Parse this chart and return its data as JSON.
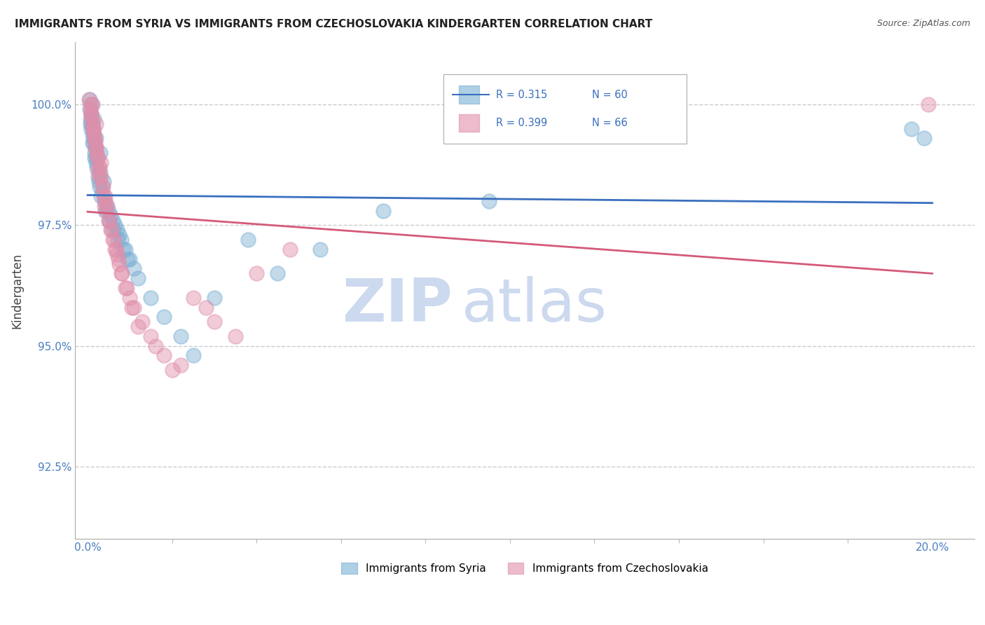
{
  "title": "IMMIGRANTS FROM SYRIA VS IMMIGRANTS FROM CZECHOSLOVAKIA KINDERGARTEN CORRELATION CHART",
  "source": "Source: ZipAtlas.com",
  "ylabel": "Kindergarten",
  "ylim": [
    91.0,
    101.3
  ],
  "xlim": [
    -0.3,
    21.0
  ],
  "yticks": [
    92.5,
    95.0,
    97.5,
    100.0
  ],
  "xtick_left": "0.0%",
  "xtick_right": "20.0%",
  "syria_color": "#7bafd4",
  "czechoslovakia_color": "#e08faa",
  "syria_line_color": "#3a6fbe",
  "czechoslovakia_line_color": "#d45a7a",
  "syria_label": "Immigrants from Syria",
  "czechoslovakia_label": "Immigrants from Czechoslovakia",
  "R_syria": "0.315",
  "N_syria": "60",
  "R_czecho": "0.399",
  "N_czecho": "66",
  "background_color": "#ffffff",
  "grid_color": "#cccccc",
  "watermark_zip": "ZIP",
  "watermark_atlas": "atlas",
  "watermark_color": "#ccd9ee",
  "tick_color": "#4a7fc1",
  "syria_x": [
    0.05,
    0.05,
    0.07,
    0.08,
    0.09,
    0.1,
    0.1,
    0.12,
    0.13,
    0.14,
    0.15,
    0.15,
    0.16,
    0.17,
    0.18,
    0.2,
    0.2,
    0.22,
    0.25,
    0.28,
    0.3,
    0.3,
    0.35,
    0.38,
    0.4,
    0.45,
    0.5,
    0.55,
    0.6,
    0.65,
    0.7,
    0.75,
    0.8,
    0.9,
    1.0,
    1.1,
    1.2,
    1.5,
    1.8,
    2.2,
    2.5,
    3.0,
    3.8,
    4.5,
    5.5,
    7.0,
    9.5,
    0.06,
    0.11,
    0.19,
    0.26,
    0.32,
    0.42,
    0.52,
    0.62,
    0.72,
    0.85,
    0.95,
    19.5,
    19.8
  ],
  "syria_y": [
    99.9,
    100.1,
    99.7,
    99.5,
    99.8,
    99.6,
    100.0,
    99.4,
    99.3,
    99.5,
    99.2,
    99.7,
    99.0,
    98.9,
    99.1,
    98.8,
    99.3,
    98.7,
    98.5,
    98.3,
    98.6,
    99.0,
    98.2,
    98.4,
    98.0,
    97.9,
    97.8,
    97.7,
    97.6,
    97.5,
    97.4,
    97.3,
    97.2,
    97.0,
    96.8,
    96.6,
    96.4,
    96.0,
    95.6,
    95.2,
    94.8,
    96.0,
    97.2,
    96.5,
    97.0,
    97.8,
    98.0,
    99.6,
    99.2,
    98.9,
    98.4,
    98.1,
    97.8,
    97.6,
    97.4,
    97.2,
    97.0,
    96.8,
    99.5,
    99.3
  ],
  "czecho_x": [
    0.04,
    0.06,
    0.08,
    0.1,
    0.11,
    0.12,
    0.13,
    0.15,
    0.16,
    0.18,
    0.2,
    0.2,
    0.22,
    0.25,
    0.28,
    0.3,
    0.32,
    0.35,
    0.38,
    0.4,
    0.42,
    0.45,
    0.5,
    0.55,
    0.6,
    0.65,
    0.7,
    0.75,
    0.8,
    0.9,
    1.0,
    1.1,
    1.3,
    1.5,
    1.8,
    2.0,
    2.5,
    3.0,
    0.07,
    0.09,
    0.14,
    0.17,
    0.19,
    0.23,
    0.27,
    0.31,
    0.36,
    0.41,
    0.46,
    0.52,
    0.57,
    0.63,
    0.68,
    0.73,
    0.82,
    0.92,
    1.05,
    1.2,
    1.6,
    2.2,
    2.8,
    3.5,
    4.0,
    4.8,
    19.9,
    0.24
  ],
  "czecho_y": [
    100.1,
    99.9,
    99.8,
    99.7,
    100.0,
    99.6,
    99.5,
    99.4,
    99.3,
    99.2,
    99.1,
    99.6,
    99.0,
    98.9,
    98.7,
    98.5,
    98.8,
    98.3,
    98.1,
    97.9,
    98.0,
    97.8,
    97.6,
    97.4,
    97.2,
    97.0,
    96.9,
    96.7,
    96.5,
    96.2,
    96.0,
    95.8,
    95.5,
    95.2,
    94.8,
    94.5,
    96.0,
    95.5,
    100.0,
    99.8,
    99.5,
    99.3,
    99.1,
    98.9,
    98.7,
    98.5,
    98.3,
    98.1,
    97.9,
    97.6,
    97.4,
    97.2,
    97.0,
    96.8,
    96.5,
    96.2,
    95.8,
    95.4,
    95.0,
    94.6,
    95.8,
    95.2,
    96.5,
    97.0,
    100.0,
    98.6
  ]
}
